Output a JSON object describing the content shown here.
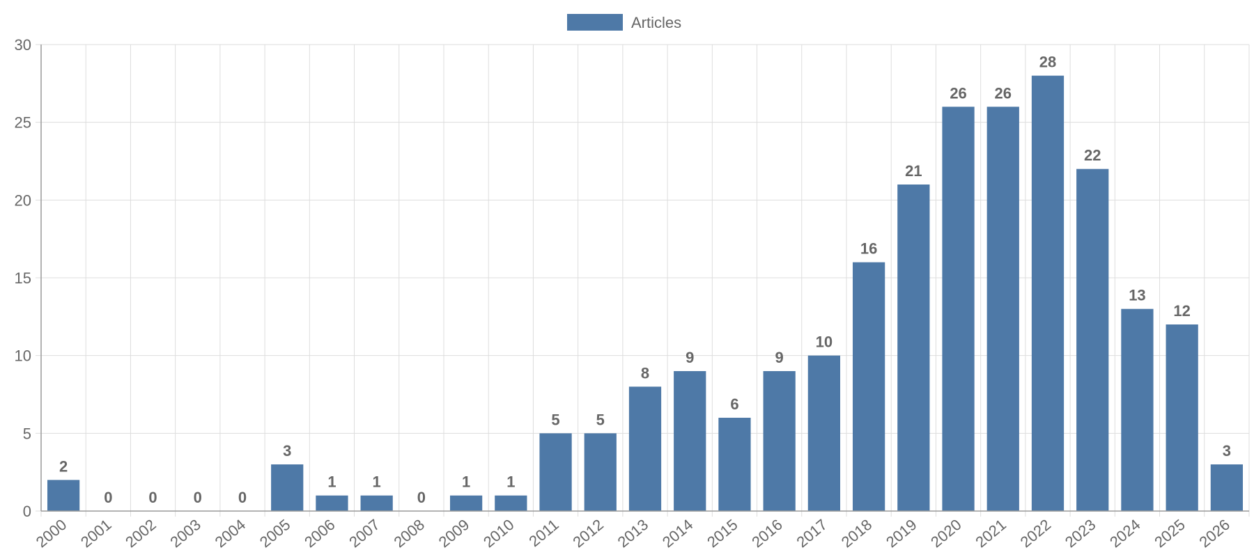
{
  "chart_data": {
    "type": "bar",
    "categories": [
      "2000",
      "2001",
      "2002",
      "2003",
      "2004",
      "2005",
      "2006",
      "2007",
      "2008",
      "2009",
      "2010",
      "2011",
      "2012",
      "2013",
      "2014",
      "2015",
      "2016",
      "2017",
      "2018",
      "2019",
      "2020",
      "2021",
      "2022",
      "2023",
      "2024",
      "2025",
      "2026"
    ],
    "series": [
      {
        "name": "Articles",
        "values": [
          2,
          0,
          0,
          0,
          0,
          3,
          1,
          1,
          0,
          1,
          1,
          5,
          5,
          8,
          9,
          6,
          9,
          10,
          16,
          21,
          26,
          26,
          28,
          22,
          13,
          12,
          3
        ],
        "color": "#4e79a7"
      }
    ],
    "title": "",
    "xlabel": "",
    "ylabel": "",
    "ylim": [
      0,
      30
    ],
    "yticks": [
      0,
      5,
      10,
      15,
      20,
      25,
      30
    ],
    "grid": true,
    "legend": "top-center",
    "data_labels": true,
    "colors": {
      "bar": "#4e79a7",
      "grid": "#dddddd",
      "axis": "#999999",
      "text": "#666666"
    }
  }
}
